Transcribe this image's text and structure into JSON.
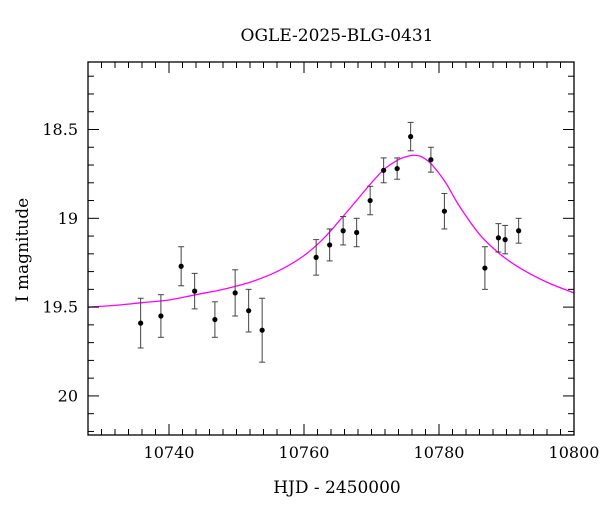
{
  "chart_data": {
    "type": "scatter",
    "title": "OGLE-2025-BLG-0431",
    "xlabel": "HJD - 2450000",
    "ylabel": "I magnitude",
    "xlim": [
      10728,
      10800
    ],
    "ylim": [
      20.22,
      18.12
    ],
    "y_inverted": true,
    "x_major_ticks": [
      10740,
      10760,
      10780,
      10800
    ],
    "x_tick_labels": [
      "10740",
      "10760",
      "10780",
      "10800"
    ],
    "x_minor_step": 2,
    "y_major_ticks": [
      18.5,
      19,
      19.5,
      20
    ],
    "y_tick_labels": [
      "18.5",
      "19",
      "19.5",
      "20"
    ],
    "y_minor_step": 0.1,
    "grid": false,
    "colors": {
      "data": "#000000",
      "model": "#ff00ff",
      "frame": "#000000",
      "errorbar": "#444444"
    },
    "series": [
      {
        "kind": "points_with_errorbars",
        "x": [
          10735.8,
          10738.8,
          10741.8,
          10743.8,
          10746.8,
          10749.8,
          10751.8,
          10753.8,
          10761.8,
          10763.8,
          10765.8,
          10767.8,
          10769.8,
          10771.8,
          10773.8,
          10775.8,
          10778.8,
          10780.8,
          10786.8,
          10788.8,
          10789.8,
          10791.8
        ],
        "y": [
          19.59,
          19.55,
          19.27,
          19.41,
          19.57,
          19.42,
          19.52,
          19.63,
          19.22,
          19.15,
          19.07,
          19.08,
          18.9,
          18.73,
          18.72,
          18.54,
          18.67,
          18.96,
          19.28,
          19.11,
          19.12,
          19.07
        ],
        "err": [
          0.14,
          0.12,
          0.11,
          0.1,
          0.1,
          0.13,
          0.12,
          0.18,
          0.1,
          0.09,
          0.08,
          0.08,
          0.08,
          0.07,
          0.06,
          0.08,
          0.07,
          0.1,
          0.12,
          0.08,
          0.08,
          0.07
        ]
      },
      {
        "kind": "model_curve",
        "x": [
          10728,
          10732,
          10736,
          10740,
          10744,
          10748,
          10752,
          10756,
          10760,
          10763,
          10766,
          10768,
          10770,
          10772,
          10774,
          10775,
          10776.2,
          10777.5,
          10779,
          10781,
          10783,
          10786,
          10789,
          10792,
          10796,
          10800
        ],
        "y": [
          19.5,
          19.49,
          19.475,
          19.46,
          19.43,
          19.4,
          19.36,
          19.3,
          19.21,
          19.11,
          18.98,
          18.89,
          18.8,
          18.72,
          18.67,
          18.655,
          18.645,
          18.655,
          18.7,
          18.8,
          18.93,
          19.09,
          19.2,
          19.28,
          19.36,
          19.42
        ]
      }
    ]
  }
}
